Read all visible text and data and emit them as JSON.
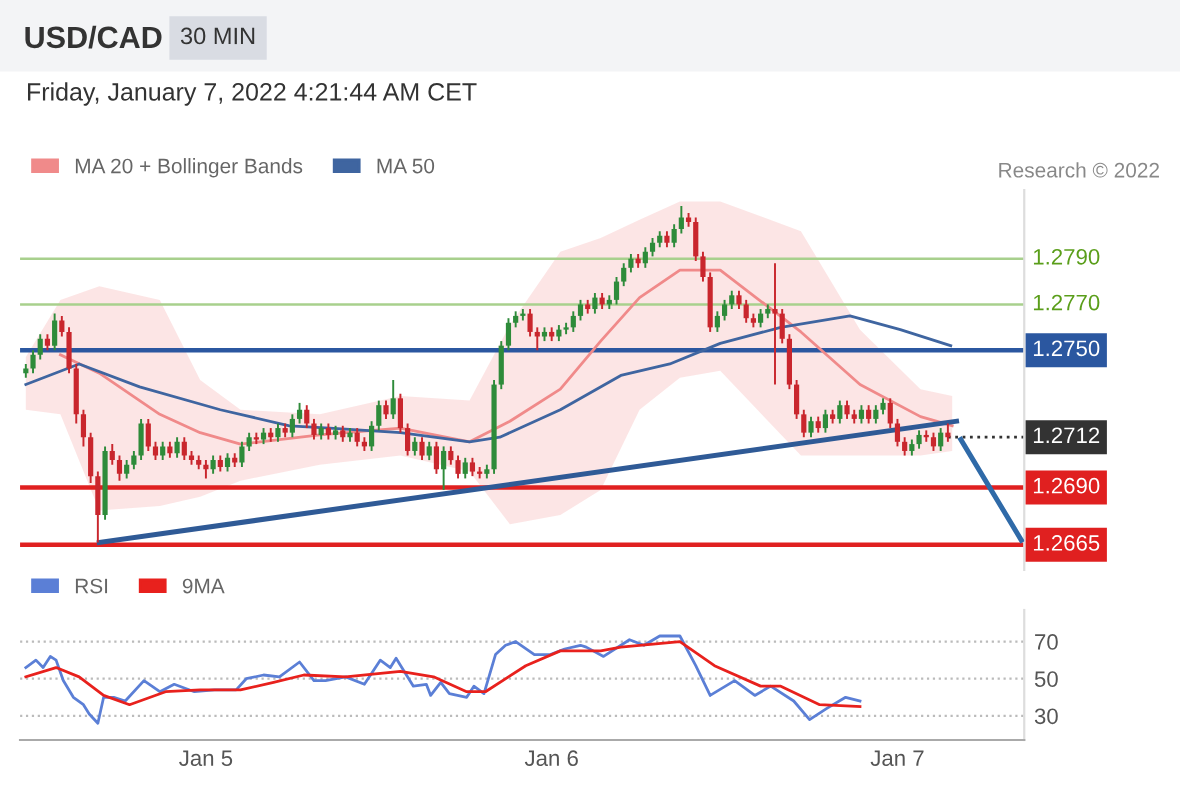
{
  "chart_data": [
    {
      "type": "candlestick",
      "title": "USD/CAD",
      "subtitle": "Friday, January 7, 2022 4:21:44 AM CET",
      "annotations": [
        "30 MIN",
        "Research © 2022"
      ],
      "x": [
        "2022-01-04T11:30",
        "2022-01-04T12:00",
        "2022-01-04T12:30",
        "2022-01-04T13:00",
        "2022-01-04T13:30",
        "2022-01-04T14:00",
        "2022-01-04T14:30",
        "2022-01-04T15:00",
        "2022-01-04T15:30",
        "2022-01-04T16:00",
        "2022-01-04T16:30",
        "2022-01-04T17:00",
        "2022-01-04T17:30",
        "2022-01-04T18:00",
        "2022-01-04T18:30",
        "2022-01-04T19:00",
        "2022-01-04T19:30",
        "2022-01-04T20:00",
        "2022-01-04T20:30",
        "2022-01-04T21:00",
        "2022-01-04T21:30",
        "2022-01-04T22:00",
        "2022-01-04T22:30",
        "2022-01-04T23:00",
        "2022-01-04T23:30",
        "2022-01-05T00:00",
        "2022-01-05T00:30",
        "2022-01-05T01:00",
        "2022-01-05T01:30",
        "2022-01-05T02:00",
        "2022-01-05T02:30",
        "2022-01-05T03:00",
        "2022-01-05T03:30",
        "2022-01-05T04:00",
        "2022-01-05T04:30",
        "2022-01-05T05:00",
        "2022-01-05T05:30",
        "2022-01-05T06:00",
        "2022-01-05T06:30",
        "2022-01-05T07:00",
        "2022-01-05T07:30",
        "2022-01-05T08:00",
        "2022-01-05T08:30",
        "2022-01-05T09:00",
        "2022-01-05T09:30",
        "2022-01-05T10:00",
        "2022-01-05T10:30",
        "2022-01-05T11:00",
        "2022-01-05T11:30",
        "2022-01-05T12:00",
        "2022-01-05T12:30",
        "2022-01-05T13:00",
        "2022-01-05T13:30",
        "2022-01-05T14:00",
        "2022-01-05T14:30",
        "2022-01-05T15:00",
        "2022-01-05T15:30",
        "2022-01-05T16:00",
        "2022-01-05T16:30",
        "2022-01-05T17:00",
        "2022-01-05T17:30",
        "2022-01-05T18:00",
        "2022-01-05T18:30",
        "2022-01-05T19:00",
        "2022-01-05T19:30",
        "2022-01-05T20:00",
        "2022-01-05T20:30",
        "2022-01-05T21:00",
        "2022-01-05T21:30",
        "2022-01-05T22:00",
        "2022-01-05T22:30",
        "2022-01-05T23:00",
        "2022-01-05T23:30",
        "2022-01-06T00:00",
        "2022-01-06T00:30",
        "2022-01-06T01:00",
        "2022-01-06T01:30",
        "2022-01-06T02:00",
        "2022-01-06T02:30",
        "2022-01-06T03:00",
        "2022-01-06T03:30",
        "2022-01-06T04:00",
        "2022-01-06T04:30",
        "2022-01-06T05:00",
        "2022-01-06T05:30",
        "2022-01-06T06:00",
        "2022-01-06T06:30",
        "2022-01-06T07:00",
        "2022-01-06T07:30",
        "2022-01-06T08:00",
        "2022-01-06T08:30",
        "2022-01-06T09:00",
        "2022-01-06T09:30",
        "2022-01-06T10:00",
        "2022-01-06T10:30",
        "2022-01-06T11:00",
        "2022-01-06T11:30",
        "2022-01-06T12:00",
        "2022-01-06T12:30",
        "2022-01-06T13:00",
        "2022-01-06T13:30",
        "2022-01-06T14:00",
        "2022-01-06T14:30",
        "2022-01-06T15:00",
        "2022-01-06T15:30",
        "2022-01-06T16:00",
        "2022-01-06T16:30",
        "2022-01-06T17:00",
        "2022-01-06T17:30",
        "2022-01-06T18:00",
        "2022-01-06T18:30",
        "2022-01-06T19:00",
        "2022-01-06T19:30",
        "2022-01-06T20:00",
        "2022-01-06T20:30",
        "2022-01-06T21:00",
        "2022-01-06T21:30",
        "2022-01-06T22:00",
        "2022-01-06T22:30",
        "2022-01-06T23:00",
        "2022-01-06T23:30",
        "2022-01-07T00:00",
        "2022-01-07T00:30",
        "2022-01-07T01:00",
        "2022-01-07T01:30",
        "2022-01-07T02:00",
        "2022-01-07T02:30",
        "2022-01-07T03:00",
        "2022-01-07T03:30"
      ],
      "ohlc": [
        [
          1.274,
          1.2744,
          1.2738,
          1.2742
        ],
        [
          1.2742,
          1.275,
          1.274,
          1.2748
        ],
        [
          1.2748,
          1.2757,
          1.2746,
          1.2755
        ],
        [
          1.2755,
          1.2757,
          1.275,
          1.2752
        ],
        [
          1.2752,
          1.2766,
          1.275,
          1.2763
        ],
        [
          1.2763,
          1.2765,
          1.2756,
          1.2758
        ],
        [
          1.2758,
          1.276,
          1.274,
          1.2742
        ],
        [
          1.2742,
          1.2744,
          1.2718,
          1.2722
        ],
        [
          1.2722,
          1.2724,
          1.2708,
          1.2712
        ],
        [
          1.2712,
          1.2714,
          1.2692,
          1.2695
        ],
        [
          1.2695,
          1.2697,
          1.2666,
          1.2678
        ],
        [
          1.2678,
          1.2708,
          1.2676,
          1.2706
        ],
        [
          1.2706,
          1.2709,
          1.27,
          1.2702
        ],
        [
          1.2702,
          1.2704,
          1.2693,
          1.2696
        ],
        [
          1.2696,
          1.2702,
          1.2694,
          1.27
        ],
        [
          1.27,
          1.2706,
          1.2698,
          1.2704
        ],
        [
          1.2704,
          1.272,
          1.2702,
          1.2718
        ],
        [
          1.2718,
          1.272,
          1.2706,
          1.2708
        ],
        [
          1.2708,
          1.271,
          1.2702,
          1.2704
        ],
        [
          1.2704,
          1.271,
          1.2702,
          1.2708
        ],
        [
          1.2708,
          1.271,
          1.2703,
          1.2705
        ],
        [
          1.2705,
          1.2712,
          1.2703,
          1.271
        ],
        [
          1.271,
          1.2712,
          1.2702,
          1.2704
        ],
        [
          1.2704,
          1.2706,
          1.27,
          1.2702
        ],
        [
          1.2702,
          1.2704,
          1.2698,
          1.27
        ],
        [
          1.27,
          1.2702,
          1.2694,
          1.2698
        ],
        [
          1.2698,
          1.2704,
          1.2696,
          1.2702
        ],
        [
          1.2702,
          1.2704,
          1.2697,
          1.2699
        ],
        [
          1.2699,
          1.2705,
          1.2697,
          1.2703
        ],
        [
          1.2703,
          1.2705,
          1.2699,
          1.2701
        ],
        [
          1.2701,
          1.271,
          1.2699,
          1.2708
        ],
        [
          1.2708,
          1.2714,
          1.2706,
          1.2712
        ],
        [
          1.2712,
          1.2714,
          1.2709,
          1.2711
        ],
        [
          1.2711,
          1.2716,
          1.2709,
          1.2714
        ],
        [
          1.2714,
          1.2716,
          1.271,
          1.2712
        ],
        [
          1.2712,
          1.2718,
          1.271,
          1.2716
        ],
        [
          1.2716,
          1.2718,
          1.2712,
          1.2714
        ],
        [
          1.2714,
          1.2722,
          1.2712,
          1.272
        ],
        [
          1.272,
          1.2727,
          1.2718,
          1.2724
        ],
        [
          1.2724,
          1.2726,
          1.2716,
          1.2718
        ],
        [
          1.2718,
          1.272,
          1.2711,
          1.2713
        ],
        [
          1.2713,
          1.2718,
          1.2711,
          1.2716
        ],
        [
          1.2716,
          1.2718,
          1.2711,
          1.2713
        ],
        [
          1.2713,
          1.2717,
          1.2711,
          1.2715
        ],
        [
          1.2715,
          1.2717,
          1.271,
          1.2712
        ],
        [
          1.2712,
          1.2716,
          1.271,
          1.2714
        ],
        [
          1.2714,
          1.2716,
          1.2708,
          1.271
        ],
        [
          1.271,
          1.2712,
          1.2706,
          1.2708
        ],
        [
          1.2708,
          1.2719,
          1.2706,
          1.2717
        ],
        [
          1.2717,
          1.2728,
          1.2715,
          1.2726
        ],
        [
          1.2726,
          1.2728,
          1.272,
          1.2722
        ],
        [
          1.2722,
          1.2737,
          1.272,
          1.2729
        ],
        [
          1.2729,
          1.2731,
          1.2714,
          1.2716
        ],
        [
          1.2716,
          1.2718,
          1.2704,
          1.2706
        ],
        [
          1.2706,
          1.2712,
          1.2704,
          1.271
        ],
        [
          1.271,
          1.2712,
          1.2702,
          1.2704
        ],
        [
          1.2704,
          1.271,
          1.2702,
          1.2708
        ],
        [
          1.2708,
          1.271,
          1.2696,
          1.2698
        ],
        [
          1.2698,
          1.2708,
          1.2689,
          1.2706
        ],
        [
          1.2706,
          1.2708,
          1.27,
          1.2702
        ],
        [
          1.2702,
          1.2704,
          1.2694,
          1.2696
        ],
        [
          1.2696,
          1.2703,
          1.2694,
          1.2701
        ],
        [
          1.2701,
          1.2703,
          1.2695,
          1.2697
        ],
        [
          1.2697,
          1.2699,
          1.2694,
          1.2696
        ],
        [
          1.2696,
          1.27,
          1.2694,
          1.2698
        ],
        [
          1.2698,
          1.2737,
          1.2696,
          1.2735
        ],
        [
          1.2735,
          1.2754,
          1.2733,
          1.2752
        ],
        [
          1.2752,
          1.2764,
          1.275,
          1.2762
        ],
        [
          1.2762,
          1.2767,
          1.276,
          1.2765
        ],
        [
          1.2765,
          1.2768,
          1.2763,
          1.2766
        ],
        [
          1.2766,
          1.2768,
          1.2756,
          1.2758
        ],
        [
          1.2758,
          1.276,
          1.275,
          1.2756
        ],
        [
          1.2756,
          1.276,
          1.2754,
          1.2758
        ],
        [
          1.2758,
          1.276,
          1.2754,
          1.2756
        ],
        [
          1.2756,
          1.2761,
          1.2754,
          1.2759
        ],
        [
          1.2759,
          1.2762,
          1.2757,
          1.276
        ],
        [
          1.276,
          1.2767,
          1.2758,
          1.2765
        ],
        [
          1.2765,
          1.2772,
          1.2763,
          1.277
        ],
        [
          1.277,
          1.2772,
          1.2766,
          1.2768
        ],
        [
          1.2768,
          1.2775,
          1.2766,
          1.2773
        ],
        [
          1.2773,
          1.2775,
          1.2768,
          1.277
        ],
        [
          1.277,
          1.2774,
          1.2768,
          1.2772
        ],
        [
          1.2772,
          1.2782,
          1.277,
          1.278
        ],
        [
          1.278,
          1.2788,
          1.2778,
          1.2786
        ],
        [
          1.2786,
          1.2792,
          1.2784,
          1.279
        ],
        [
          1.279,
          1.2792,
          1.2786,
          1.2788
        ],
        [
          1.2788,
          1.2795,
          1.2786,
          1.2793
        ],
        [
          1.2793,
          1.2799,
          1.2791,
          1.2797
        ],
        [
          1.2797,
          1.2802,
          1.2795,
          1.28
        ],
        [
          1.28,
          1.2802,
          1.2795,
          1.2797
        ],
        [
          1.2797,
          1.2805,
          1.2795,
          1.2803
        ],
        [
          1.2803,
          1.2813,
          1.2801,
          1.2808
        ],
        [
          1.2808,
          1.281,
          1.2804,
          1.2806
        ],
        [
          1.2806,
          1.2808,
          1.2789,
          1.2791
        ],
        [
          1.2791,
          1.2793,
          1.278,
          1.2782
        ],
        [
          1.2782,
          1.2784,
          1.2758,
          1.276
        ],
        [
          1.276,
          1.2767,
          1.2758,
          1.2765
        ],
        [
          1.2765,
          1.2772,
          1.2763,
          1.277
        ],
        [
          1.277,
          1.2776,
          1.2768,
          1.2774
        ],
        [
          1.2774,
          1.2776,
          1.2768,
          1.277
        ],
        [
          1.277,
          1.2772,
          1.2762,
          1.2764
        ],
        [
          1.2764,
          1.2766,
          1.276,
          1.2762
        ],
        [
          1.2762,
          1.2768,
          1.276,
          1.2766
        ],
        [
          1.2766,
          1.277,
          1.2764,
          1.2768
        ],
        [
          1.2768,
          1.2788,
          1.2735,
          1.2766
        ],
        [
          1.2766,
          1.2768,
          1.2753,
          1.2755
        ],
        [
          1.2755,
          1.2757,
          1.2733,
          1.2735
        ],
        [
          1.2735,
          1.2737,
          1.272,
          1.2722
        ],
        [
          1.2722,
          1.2724,
          1.2712,
          1.2714
        ],
        [
          1.2714,
          1.2721,
          1.2712,
          1.2719
        ],
        [
          1.2719,
          1.2721,
          1.2714,
          1.2716
        ],
        [
          1.2716,
          1.2724,
          1.2714,
          1.2722
        ],
        [
          1.2722,
          1.2724,
          1.2718,
          1.272
        ],
        [
          1.272,
          1.2728,
          1.2718,
          1.2726
        ],
        [
          1.2726,
          1.2728,
          1.272,
          1.2722
        ],
        [
          1.2722,
          1.2724,
          1.2718,
          1.272
        ],
        [
          1.272,
          1.2726,
          1.2718,
          1.2724
        ],
        [
          1.2724,
          1.2726,
          1.2718,
          1.272
        ],
        [
          1.272,
          1.2726,
          1.2718,
          1.2724
        ],
        [
          1.2724,
          1.2729,
          1.2722,
          1.2727
        ],
        [
          1.2727,
          1.2729,
          1.2716,
          1.2718
        ],
        [
          1.2718,
          1.272,
          1.2708,
          1.271
        ],
        [
          1.271,
          1.2712,
          1.2704,
          1.2706
        ],
        [
          1.2706,
          1.2711,
          1.2704,
          1.2709
        ],
        [
          1.2709,
          1.2715,
          1.2707,
          1.2713
        ],
        [
          1.2713,
          1.2715,
          1.271,
          1.2712
        ],
        [
          1.2712,
          1.2714,
          1.2706,
          1.2708
        ],
        [
          1.2708,
          1.2716,
          1.2706,
          1.2714
        ],
        [
          1.2714,
          1.2718,
          1.271,
          1.2712
        ]
      ],
      "series": [
        {
          "type": "line",
          "name": "MA 20 + Bollinger Bands",
          "color": "#f08a8a",
          "x": [
            "2022-01-04T11:30",
            "2022-01-04T13:54",
            "2022-01-04T16:36",
            "2022-01-04T20:48",
            "2022-01-04T23:36",
            "2022-01-05T02:24",
            "2022-01-05T07:54",
            "2022-01-05T13:30",
            "2022-01-05T18:18",
            "2022-01-05T21:06",
            "2022-01-06T00:36",
            "2022-01-06T03:24",
            "2022-01-06T06:06",
            "2022-01-06T08:54",
            "2022-01-06T11:42",
            "2022-01-06T17:18",
            "2022-01-06T21:24",
            "2022-01-07T01:36",
            "2022-01-07T03:48"
          ],
          "values": [
            null,
            1.2748,
            1.274,
            1.2722,
            1.2714,
            1.2709,
            1.2713,
            1.2716,
            1.271,
            1.2719,
            1.2733,
            1.2754,
            1.2773,
            1.2785,
            1.2785,
            1.2758,
            1.2735,
            1.2721,
            1.2717
          ],
          "upper": [
            1.2747,
            1.2772,
            1.2778,
            1.2772,
            1.2737,
            1.2724,
            1.2722,
            1.273,
            1.2728,
            1.2761,
            1.2793,
            1.2799,
            1.2807,
            1.2815,
            1.2815,
            1.2802,
            1.2759,
            1.2733,
            1.273
          ],
          "lower": [
            1.2724,
            1.2722,
            1.268,
            1.2682,
            1.2686,
            1.2693,
            1.27,
            1.2704,
            1.2697,
            1.2674,
            1.2678,
            1.2689,
            1.2724,
            1.2738,
            1.2741,
            1.2704,
            1.2704,
            1.2704,
            1.2706
          ]
        },
        {
          "type": "line",
          "name": "MA 50",
          "color": "#3f65a0",
          "x": [
            "2022-01-04T11:30",
            "2022-01-04T15:12",
            "2022-01-04T19:24",
            "2022-01-05T01:00",
            "2022-01-05T05:48",
            "2022-01-05T08:36",
            "2022-01-05T13:30",
            "2022-01-05T18:18",
            "2022-01-05T20:24",
            "2022-01-06T00:36",
            "2022-01-06T04:48",
            "2022-01-06T08:12",
            "2022-01-06T11:42",
            "2022-01-06T15:54",
            "2022-01-06T20:42",
            "2022-01-07T00:12",
            "2022-01-07T03:42"
          ],
          "values": [
            1.2735,
            1.2744,
            1.2734,
            1.2724,
            1.2717,
            1.2716,
            1.2714,
            1.271,
            1.2712,
            1.2724,
            1.2739,
            1.2744,
            1.2753,
            1.276,
            1.2765,
            1.2759,
            1.2752
          ]
        },
        {
          "type": "line",
          "color": "#2f5a96",
          "x": [
            "2022-01-04T16:36",
            "2022-01-07T04:06"
          ],
          "values": [
            1.2666,
            1.2719
          ]
        },
        {
          "type": "line",
          "color": "#2f6aa8",
          "x": [
            "2022-01-07T04:24",
            "2022-01-07T08:36"
          ],
          "values": [
            1.2711,
            1.2667
          ]
        }
      ],
      "xlim": [
        "2022-01-04T11:06",
        "2022-01-07T08:48"
      ],
      "ylim": [
        1.2654,
        1.282
      ],
      "ref_lines": [
        {
          "axis": "y",
          "value": 1.279,
          "label": "1.2790",
          "color": "#a8d08d"
        },
        {
          "axis": "y",
          "value": 1.277,
          "label": "1.2770",
          "color": "#a8d08d"
        },
        {
          "axis": "y",
          "value": 1.275,
          "label": "1.2750",
          "color": "#2b57a0"
        },
        {
          "axis": "y",
          "value": 1.2712,
          "label": "1.2712",
          "color": "#333333",
          "line_style": "dotted"
        },
        {
          "axis": "y",
          "value": 1.269,
          "label": "1.2690",
          "color": "#e02020"
        },
        {
          "axis": "y",
          "value": 1.2665,
          "label": "1.2665",
          "color": "#e02020"
        }
      ],
      "legend": "top left"
    },
    {
      "type": "line",
      "series": [
        {
          "name": "RSI",
          "color": "#5b7fd6",
          "x": [
            "2022-01-04T11:30",
            "2022-01-04T12:12",
            "2022-01-04T12:42",
            "2022-01-04T13:12",
            "2022-01-04T13:36",
            "2022-01-04T14:06",
            "2022-01-04T14:48",
            "2022-01-04T15:30",
            "2022-01-04T15:54",
            "2022-01-04T16:30",
            "2022-01-04T16:54",
            "2022-01-04T17:36",
            "2022-01-04T18:24",
            "2022-01-04T19:42",
            "2022-01-04T20:48",
            "2022-01-04T21:48",
            "2022-01-04T23:12",
            "2022-01-05T00:36",
            "2022-01-05T02:06",
            "2022-01-05T02:48",
            "2022-01-05T04:00",
            "2022-01-05T05:06",
            "2022-01-05T06:30",
            "2022-01-05T07:30",
            "2022-01-05T08:18",
            "2022-01-05T09:42",
            "2022-01-05T11:00",
            "2022-01-05T12:06",
            "2022-01-05T12:48",
            "2022-01-05T13:12",
            "2022-01-05T14:24",
            "2022-01-05T15:18",
            "2022-01-05T15:36",
            "2022-01-05T16:18",
            "2022-01-05T16:54",
            "2022-01-05T18:06",
            "2022-01-05T18:36",
            "2022-01-05T19:18",
            "2022-01-05T20:06",
            "2022-01-05T20:48",
            "2022-01-05T21:30",
            "2022-01-05T22:48",
            "2022-01-05T23:54",
            "2022-01-06T00:54",
            "2022-01-06T02:00",
            "2022-01-06T02:24",
            "2022-01-06T03:36",
            "2022-01-06T05:24",
            "2022-01-06T06:24",
            "2022-01-06T07:30",
            "2022-01-06T08:54",
            "2022-01-06T10:00",
            "2022-01-06T11:00",
            "2022-01-06T12:42",
            "2022-01-06T14:06",
            "2022-01-06T15:12",
            "2022-01-06T16:48",
            "2022-01-06T17:54",
            "2022-01-06T19:06",
            "2022-01-06T20:24",
            "2022-01-06T21:24"
          ],
          "values": [
            56,
            60,
            56,
            62,
            60,
            49,
            40,
            36,
            31,
            26,
            40,
            40,
            38,
            49,
            43,
            47,
            43,
            44,
            44,
            50,
            52,
            51,
            59,
            49,
            49,
            51,
            47,
            60,
            56,
            61,
            46,
            47,
            41,
            48,
            42,
            40,
            46,
            42,
            63,
            68,
            70,
            63,
            63,
            66,
            68,
            67,
            62,
            71,
            68,
            73,
            73,
            57,
            41,
            49,
            41,
            46,
            38,
            28,
            34,
            40,
            38
          ]
        },
        {
          "name": "9MA",
          "color": "#e8211d",
          "x": [
            "2022-01-04T11:30",
            "2022-01-04T13:36",
            "2022-01-04T15:12",
            "2022-01-04T16:54",
            "2022-01-04T18:42",
            "2022-01-04T21:12",
            "2022-01-04T23:36",
            "2022-01-05T02:24",
            "2022-01-05T04:42",
            "2022-01-05T06:48",
            "2022-01-05T09:42",
            "2022-01-05T13:30",
            "2022-01-05T15:48",
            "2022-01-05T18:06",
            "2022-01-05T19:24",
            "2022-01-05T22:12",
            "2022-01-06T00:36",
            "2022-01-06T03:24",
            "2022-01-06T04:48",
            "2022-01-06T08:54",
            "2022-01-06T11:18",
            "2022-01-06T14:30",
            "2022-01-06T15:54",
            "2022-01-06T18:36",
            "2022-01-06T21:24"
          ],
          "values": [
            51,
            56,
            51,
            41,
            36,
            43,
            44,
            44,
            48,
            52,
            51,
            54,
            51,
            43,
            43,
            57,
            65,
            65,
            67,
            70,
            57,
            46,
            46,
            36,
            35
          ]
        }
      ],
      "xlim": [
        "2022-01-04T11:06",
        "2022-01-07T08:48"
      ],
      "ylim": [
        17,
        87
      ],
      "yticks": [
        30,
        50,
        70
      ],
      "xticks": [
        {
          "value": "2022-01-05",
          "label": "Jan 5"
        },
        {
          "value": "2022-01-06",
          "label": "Jan 6"
        },
        {
          "value": "2022-01-07",
          "label": "Jan 7"
        }
      ],
      "grid": "y",
      "legend": "top left"
    }
  ]
}
